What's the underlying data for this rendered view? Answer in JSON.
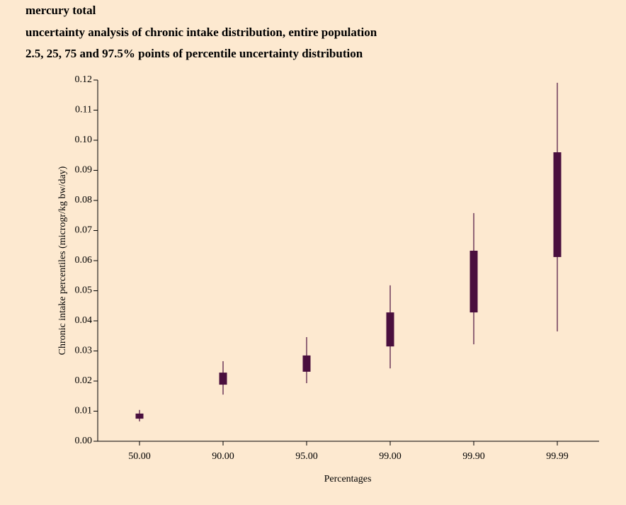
{
  "chart_data": {
    "type": "box",
    "title": [
      "mercury total",
      "uncertainty analysis of chronic intake distribution, entire population",
      "2.5, 25, 75 and 97.5% points of percentile uncertainty distribution"
    ],
    "x_label": "Percentages",
    "y_label": "Chronic intake percentiles (microgr/kg bw/day)",
    "categories": [
      "50.00",
      "90.00",
      "95.00",
      "99.00",
      "99.90",
      "99.99"
    ],
    "low": [
      0.0066,
      0.0155,
      0.0193,
      0.0242,
      0.0322,
      0.0365
    ],
    "q1": [
      0.0075,
      0.0188,
      0.0231,
      0.0315,
      0.0428,
      0.0612
    ],
    "q3": [
      0.0092,
      0.0228,
      0.0285,
      0.0428,
      0.0633,
      0.096
    ],
    "high": [
      0.0104,
      0.0266,
      0.0346,
      0.0518,
      0.0758,
      0.1191
    ],
    "color": "#4a0f3e",
    "background": "#fde9d0",
    "ylim": [
      0,
      0.12
    ],
    "yticks": [
      {
        "value": 0,
        "label": "0.00"
      },
      {
        "value": 0.01,
        "label": "0.01"
      },
      {
        "value": 0.02,
        "label": "0.02"
      },
      {
        "value": 0.03,
        "label": "0.03"
      },
      {
        "value": 0.04,
        "label": "0.04"
      },
      {
        "value": 0.05,
        "label": "0.05"
      },
      {
        "value": 0.06,
        "label": "0.06"
      },
      {
        "value": 0.07,
        "label": "0.07"
      },
      {
        "value": 0.08,
        "label": "0.08"
      },
      {
        "value": 0.09,
        "label": "0.09"
      },
      {
        "value": 0.1,
        "label": "0.10"
      },
      {
        "value": 0.11,
        "label": "0.11"
      },
      {
        "value": 0.12,
        "label": "0.12"
      }
    ]
  }
}
